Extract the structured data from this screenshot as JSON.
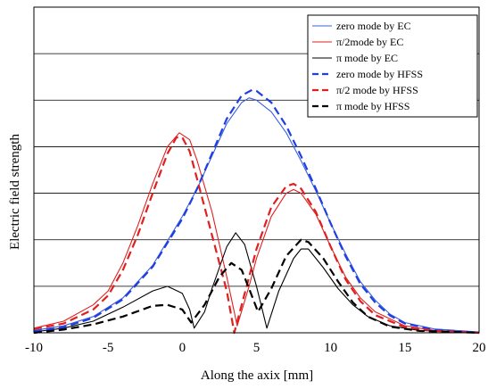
{
  "chart_data": {
    "type": "line",
    "title": "",
    "xlabel": "Along the axix   [mm]",
    "ylabel": "Electric  field strength",
    "xlim": [
      -10,
      20
    ],
    "ylim": [
      0,
      7
    ],
    "x_ticks": [
      "-10",
      "-5",
      "0",
      "5",
      "10",
      "15",
      "20"
    ],
    "grid": {
      "horizontal": true,
      "vertical": false,
      "lines": 7
    },
    "legend_position": "top-right",
    "series": [
      {
        "name": "zero mode by EC",
        "color": "#3a5fe0",
        "style": "solid",
        "points": [
          [
            -10,
            0.05
          ],
          [
            -8,
            0.15
          ],
          [
            -6,
            0.35
          ],
          [
            -4,
            0.75
          ],
          [
            -2,
            1.45
          ],
          [
            0,
            2.5
          ],
          [
            1,
            3.1
          ],
          [
            2,
            3.8
          ],
          [
            3,
            4.5
          ],
          [
            4,
            4.95
          ],
          [
            4.5,
            5.05
          ],
          [
            5,
            5.0
          ],
          [
            6,
            4.75
          ],
          [
            7,
            4.3
          ],
          [
            8,
            3.7
          ],
          [
            9,
            3.05
          ],
          [
            10,
            2.35
          ],
          [
            11,
            1.7
          ],
          [
            12,
            1.1
          ],
          [
            13,
            0.7
          ],
          [
            14,
            0.4
          ],
          [
            15,
            0.22
          ],
          [
            17,
            0.08
          ],
          [
            20,
            0.02
          ]
        ]
      },
      {
        "name": "π/2mode by EC",
        "color": "#e02020",
        "style": "solid",
        "points": [
          [
            -10,
            0.1
          ],
          [
            -8,
            0.25
          ],
          [
            -6,
            0.6
          ],
          [
            -5,
            0.9
          ],
          [
            -4,
            1.5
          ],
          [
            -3,
            2.3
          ],
          [
            -2,
            3.2
          ],
          [
            -1,
            4.0
          ],
          [
            -0.2,
            4.3
          ],
          [
            0.5,
            4.15
          ],
          [
            1,
            3.7
          ],
          [
            2,
            2.6
          ],
          [
            3,
            1.2
          ],
          [
            3.7,
            0.15
          ],
          [
            4.5,
            1.0
          ],
          [
            5,
            1.6
          ],
          [
            6,
            2.5
          ],
          [
            7,
            3.0
          ],
          [
            7.5,
            3.08
          ],
          [
            8,
            3.0
          ],
          [
            9,
            2.55
          ],
          [
            10,
            1.85
          ],
          [
            11,
            1.2
          ],
          [
            12,
            0.75
          ],
          [
            13,
            0.45
          ],
          [
            15,
            0.15
          ],
          [
            17,
            0.05
          ],
          [
            20,
            0.01
          ]
        ]
      },
      {
        "name": "π mode by EC",
        "color": "#000000",
        "style": "solid",
        "points": [
          [
            -10,
            0.02
          ],
          [
            -8,
            0.1
          ],
          [
            -6,
            0.25
          ],
          [
            -4,
            0.55
          ],
          [
            -2,
            0.9
          ],
          [
            -1,
            1.0
          ],
          [
            0,
            0.85
          ],
          [
            0.5,
            0.5
          ],
          [
            0.8,
            0.1
          ],
          [
            1.5,
            0.45
          ],
          [
            2,
            0.95
          ],
          [
            3,
            1.85
          ],
          [
            3.6,
            2.15
          ],
          [
            4.2,
            1.9
          ],
          [
            5,
            1.0
          ],
          [
            5.7,
            0.1
          ],
          [
            6.5,
            0.9
          ],
          [
            7.5,
            1.6
          ],
          [
            8,
            1.8
          ],
          [
            8.5,
            1.8
          ],
          [
            9.5,
            1.4
          ],
          [
            10.5,
            0.95
          ],
          [
            11.5,
            0.6
          ],
          [
            12.5,
            0.35
          ],
          [
            14,
            0.15
          ],
          [
            16,
            0.05
          ],
          [
            20,
            0.01
          ]
        ]
      },
      {
        "name": "zero mode by HFSS",
        "color": "#1f3fe0",
        "style": "dashed",
        "points": [
          [
            -10,
            0.03
          ],
          [
            -8,
            0.12
          ],
          [
            -6,
            0.32
          ],
          [
            -4,
            0.72
          ],
          [
            -2,
            1.42
          ],
          [
            0,
            2.45
          ],
          [
            1,
            3.1
          ],
          [
            2,
            3.85
          ],
          [
            3,
            4.6
          ],
          [
            4,
            5.1
          ],
          [
            4.7,
            5.22
          ],
          [
            5,
            5.2
          ],
          [
            6,
            4.95
          ],
          [
            7,
            4.45
          ],
          [
            8,
            3.8
          ],
          [
            9,
            3.1
          ],
          [
            10,
            2.35
          ],
          [
            11,
            1.65
          ],
          [
            12,
            1.05
          ],
          [
            13,
            0.65
          ],
          [
            14,
            0.37
          ],
          [
            15,
            0.2
          ],
          [
            17,
            0.07
          ],
          [
            20,
            0.0
          ]
        ]
      },
      {
        "name": "π/2 mode by HFSS",
        "color": "#e02020",
        "style": "dashed",
        "points": [
          [
            -10,
            0.08
          ],
          [
            -8,
            0.2
          ],
          [
            -6,
            0.5
          ],
          [
            -5,
            0.8
          ],
          [
            -4,
            1.35
          ],
          [
            -3,
            2.1
          ],
          [
            -2,
            3.0
          ],
          [
            -1,
            3.85
          ],
          [
            -0.4,
            4.2
          ],
          [
            0,
            4.2
          ],
          [
            0.5,
            3.9
          ],
          [
            1,
            3.3
          ],
          [
            2,
            2.1
          ],
          [
            3,
            0.9
          ],
          [
            3.5,
            0.0
          ],
          [
            4.5,
            1.2
          ],
          [
            5,
            1.8
          ],
          [
            6,
            2.7
          ],
          [
            7,
            3.15
          ],
          [
            7.5,
            3.2
          ],
          [
            8,
            3.1
          ],
          [
            9,
            2.6
          ],
          [
            10,
            1.85
          ],
          [
            11,
            1.15
          ],
          [
            12,
            0.68
          ],
          [
            13,
            0.38
          ],
          [
            15,
            0.12
          ],
          [
            17,
            0.04
          ],
          [
            20,
            0.0
          ]
        ]
      },
      {
        "name": "π mode by HFSS",
        "color": "#000000",
        "style": "dashed",
        "points": [
          [
            -10,
            0.0
          ],
          [
            -8,
            0.07
          ],
          [
            -6,
            0.18
          ],
          [
            -4,
            0.35
          ],
          [
            -2,
            0.58
          ],
          [
            -1,
            0.6
          ],
          [
            0,
            0.5
          ],
          [
            0.6,
            0.22
          ],
          [
            1.5,
            0.6
          ],
          [
            2.5,
            1.2
          ],
          [
            3.3,
            1.5
          ],
          [
            4,
            1.35
          ],
          [
            4.5,
            0.95
          ],
          [
            5.1,
            0.45
          ],
          [
            6,
            0.95
          ],
          [
            7,
            1.65
          ],
          [
            8,
            2.0
          ],
          [
            8.5,
            1.95
          ],
          [
            9.5,
            1.6
          ],
          [
            10.5,
            1.1
          ],
          [
            11.5,
            0.65
          ],
          [
            12.5,
            0.35
          ],
          [
            14,
            0.13
          ],
          [
            16,
            0.04
          ],
          [
            20,
            0.0
          ]
        ]
      }
    ]
  }
}
